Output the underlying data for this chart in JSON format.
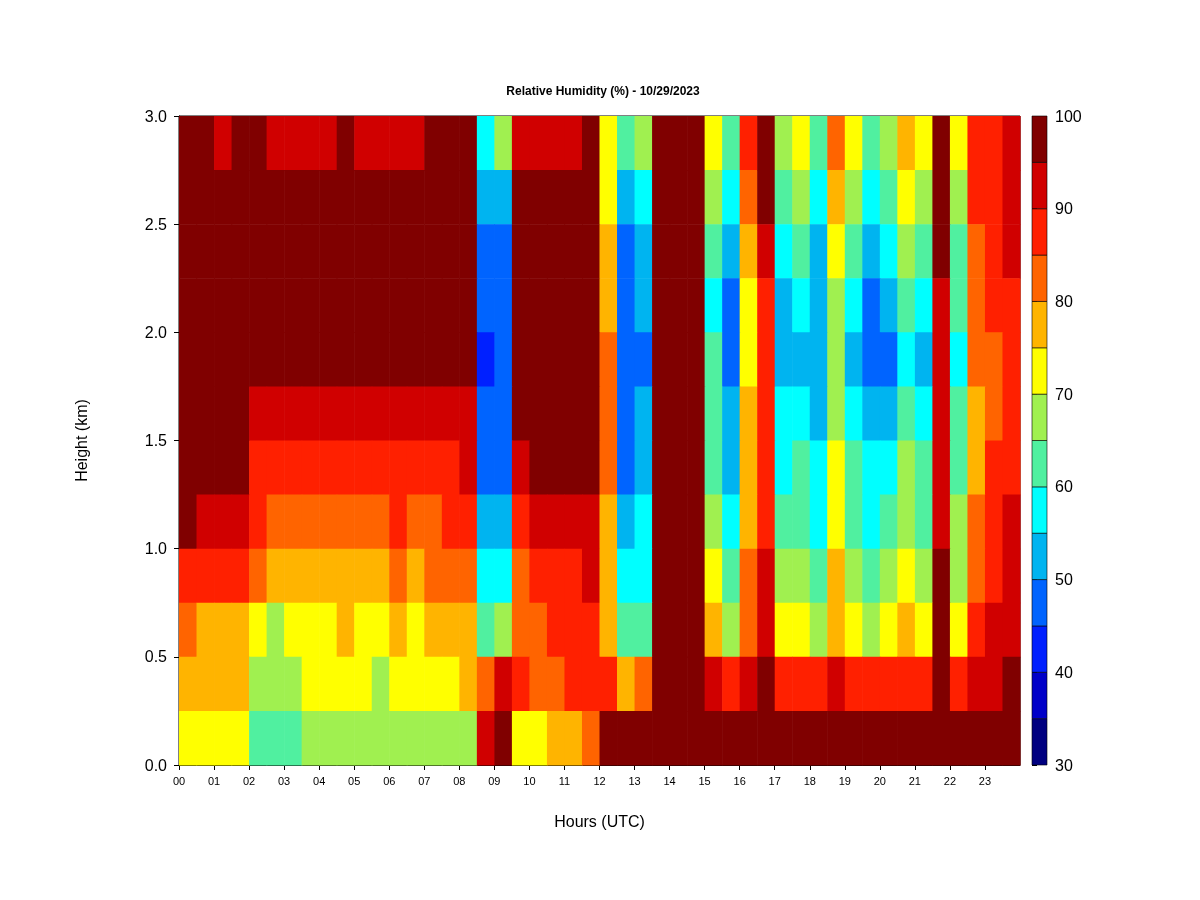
{
  "chart_data": {
    "type": "heatmap",
    "title": "Relative Humidity (%) - 10/29/2023",
    "xlabel": "Hours (UTC)",
    "ylabel": "Height (km)",
    "xlim": [
      0,
      24
    ],
    "xticks": [
      {
        "value": 0,
        "label": "00"
      },
      {
        "value": 1,
        "label": "01"
      },
      {
        "value": 2,
        "label": "02"
      },
      {
        "value": 3,
        "label": "03"
      },
      {
        "value": 4,
        "label": "04"
      },
      {
        "value": 5,
        "label": "05"
      },
      {
        "value": 6,
        "label": "06"
      },
      {
        "value": 7,
        "label": "07"
      },
      {
        "value": 8,
        "label": "08"
      },
      {
        "value": 9,
        "label": "09"
      },
      {
        "value": 10,
        "label": "10"
      },
      {
        "value": 11,
        "label": "11"
      },
      {
        "value": 12,
        "label": "12"
      },
      {
        "value": 13,
        "label": "13"
      },
      {
        "value": 14,
        "label": "14"
      },
      {
        "value": 15,
        "label": "15"
      },
      {
        "value": 16,
        "label": "16"
      },
      {
        "value": 17,
        "label": "17"
      },
      {
        "value": 18,
        "label": "18"
      },
      {
        "value": 19,
        "label": "19"
      },
      {
        "value": 20,
        "label": "20"
      },
      {
        "value": 21,
        "label": "21"
      },
      {
        "value": 22,
        "label": "22"
      },
      {
        "value": 23,
        "label": "23"
      }
    ],
    "ylim": [
      0,
      3
    ],
    "yticks": [
      {
        "value": 0,
        "label": "0.0"
      },
      {
        "value": 0.5,
        "label": "0.5"
      },
      {
        "value": 1,
        "label": "1.0"
      },
      {
        "value": 1.5,
        "label": "1.5"
      },
      {
        "value": 2,
        "label": "2.0"
      },
      {
        "value": 2.5,
        "label": "2.5"
      },
      {
        "value": 3,
        "label": "3.0"
      }
    ],
    "clim": [
      30,
      100
    ],
    "cticks": [
      30,
      40,
      50,
      60,
      70,
      80,
      90,
      100
    ],
    "cells": [
      [
        98,
        98,
        93,
        98,
        98,
        93,
        93,
        93,
        93,
        98,
        93,
        93,
        93,
        93,
        98,
        98,
        98,
        58,
        68,
        93,
        93,
        93,
        93,
        98,
        73,
        63,
        68,
        98,
        98,
        98,
        73,
        63,
        88,
        98,
        68,
        73,
        63,
        83,
        73,
        63,
        68,
        78,
        73,
        98,
        73,
        88,
        88,
        93
      ],
      [
        98,
        98,
        98,
        98,
        98,
        98,
        98,
        98,
        98,
        98,
        98,
        98,
        98,
        98,
        98,
        98,
        98,
        53,
        53,
        98,
        98,
        98,
        98,
        98,
        73,
        53,
        58,
        98,
        98,
        98,
        68,
        58,
        83,
        98,
        63,
        68,
        58,
        78,
        68,
        58,
        63,
        73,
        68,
        98,
        68,
        88,
        88,
        93
      ],
      [
        98,
        98,
        98,
        98,
        98,
        98,
        98,
        98,
        98,
        98,
        98,
        98,
        98,
        98,
        98,
        98,
        98,
        48,
        48,
        98,
        98,
        98,
        98,
        98,
        78,
        48,
        53,
        98,
        98,
        98,
        63,
        53,
        78,
        93,
        58,
        63,
        53,
        73,
        63,
        53,
        58,
        68,
        63,
        98,
        63,
        83,
        88,
        93
      ],
      [
        98,
        98,
        98,
        98,
        98,
        98,
        98,
        98,
        98,
        98,
        98,
        98,
        98,
        98,
        98,
        98,
        98,
        48,
        48,
        98,
        98,
        98,
        98,
        98,
        78,
        48,
        53,
        98,
        98,
        98,
        58,
        48,
        73,
        88,
        53,
        58,
        53,
        68,
        58,
        48,
        53,
        63,
        58,
        93,
        63,
        83,
        88,
        88
      ],
      [
        98,
        98,
        98,
        98,
        98,
        98,
        98,
        98,
        98,
        98,
        98,
        98,
        98,
        98,
        98,
        98,
        98,
        43,
        48,
        98,
        98,
        98,
        98,
        98,
        83,
        48,
        48,
        98,
        98,
        98,
        63,
        48,
        73,
        88,
        53,
        53,
        53,
        68,
        53,
        48,
        48,
        58,
        53,
        93,
        58,
        83,
        83,
        88
      ],
      [
        98,
        98,
        98,
        98,
        93,
        93,
        93,
        93,
        93,
        93,
        93,
        93,
        93,
        93,
        93,
        93,
        93,
        48,
        48,
        98,
        98,
        98,
        98,
        98,
        83,
        48,
        53,
        98,
        98,
        98,
        63,
        53,
        78,
        88,
        58,
        58,
        53,
        68,
        58,
        53,
        53,
        63,
        58,
        93,
        63,
        78,
        83,
        88
      ],
      [
        98,
        98,
        98,
        98,
        88,
        88,
        88,
        88,
        88,
        88,
        88,
        88,
        88,
        88,
        88,
        88,
        93,
        48,
        48,
        93,
        98,
        98,
        98,
        98,
        83,
        48,
        53,
        98,
        98,
        98,
        63,
        53,
        78,
        88,
        58,
        63,
        58,
        73,
        63,
        58,
        58,
        68,
        63,
        93,
        63,
        78,
        88,
        88
      ],
      [
        98,
        93,
        93,
        93,
        88,
        83,
        83,
        83,
        83,
        83,
        83,
        83,
        88,
        83,
        83,
        88,
        88,
        53,
        53,
        88,
        93,
        93,
        93,
        93,
        78,
        53,
        58,
        98,
        98,
        98,
        68,
        58,
        78,
        88,
        63,
        63,
        58,
        73,
        63,
        58,
        63,
        68,
        63,
        93,
        68,
        83,
        88,
        93
      ],
      [
        88,
        88,
        88,
        88,
        83,
        78,
        78,
        78,
        78,
        78,
        78,
        78,
        83,
        78,
        83,
        83,
        83,
        58,
        58,
        83,
        88,
        88,
        88,
        93,
        78,
        58,
        58,
        98,
        98,
        98,
        73,
        63,
        83,
        93,
        68,
        68,
        63,
        78,
        68,
        63,
        68,
        73,
        68,
        98,
        68,
        83,
        88,
        93
      ],
      [
        83,
        78,
        78,
        78,
        73,
        68,
        73,
        73,
        73,
        78,
        73,
        73,
        78,
        73,
        78,
        78,
        78,
        63,
        68,
        83,
        83,
        88,
        88,
        88,
        78,
        63,
        63,
        98,
        98,
        98,
        78,
        68,
        83,
        93,
        73,
        73,
        68,
        78,
        73,
        68,
        73,
        78,
        73,
        98,
        73,
        88,
        93,
        93
      ],
      [
        78,
        78,
        78,
        78,
        68,
        68,
        68,
        73,
        73,
        73,
        73,
        68,
        73,
        73,
        73,
        73,
        78,
        83,
        93,
        88,
        83,
        83,
        88,
        88,
        88,
        78,
        83,
        98,
        98,
        98,
        93,
        88,
        93,
        98,
        88,
        88,
        88,
        93,
        88,
        88,
        88,
        88,
        88,
        98,
        88,
        93,
        93,
        98
      ],
      [
        73,
        73,
        73,
        73,
        63,
        63,
        63,
        68,
        68,
        68,
        68,
        68,
        68,
        68,
        68,
        68,
        68,
        93,
        98,
        73,
        73,
        78,
        78,
        83,
        98,
        98,
        98,
        98,
        98,
        98,
        98,
        98,
        98,
        98,
        98,
        98,
        98,
        98,
        98,
        98,
        98,
        98,
        98,
        98,
        98,
        98,
        98,
        98
      ]
    ]
  }
}
